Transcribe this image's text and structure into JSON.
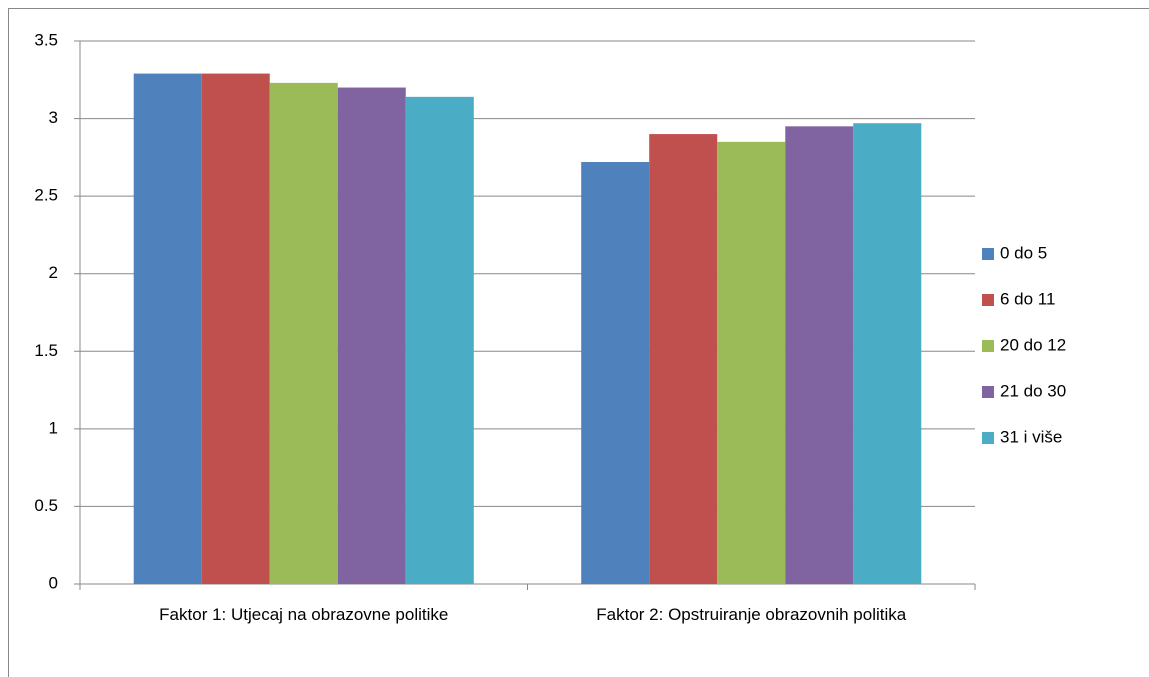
{
  "chart_data": {
    "type": "bar",
    "categories": [
      "Faktor 1: Utjecaj na obrazovne politike",
      "Faktor 2: Opstruiranje obrazovnih politika"
    ],
    "series": [
      {
        "name": "0 do 5",
        "color": "#4f81bd",
        "values": [
          3.29,
          2.72
        ]
      },
      {
        "name": "6 do 11",
        "color": "#c0504d",
        "values": [
          3.29,
          2.9
        ]
      },
      {
        "name": "20 do 12",
        "color": "#9bbb59",
        "values": [
          3.23,
          2.85
        ]
      },
      {
        "name": "21 do 30",
        "color": "#8064a2",
        "values": [
          3.2,
          2.95
        ]
      },
      {
        "name": "31 i više",
        "color": "#4bacc6",
        "values": [
          3.14,
          2.97
        ]
      }
    ],
    "ylim": [
      0,
      3.5
    ],
    "yticks": [
      0,
      0.5,
      1,
      1.5,
      2,
      2.5,
      3,
      3.5
    ],
    "grid": true,
    "legend": "right"
  }
}
